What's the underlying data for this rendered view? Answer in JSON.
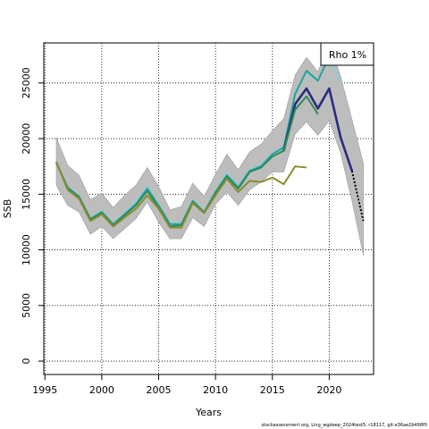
{
  "chart_data": {
    "type": "line",
    "title": "",
    "xlabel": "Years",
    "ylabel": "SSB",
    "xlim": [
      1994.9,
      2023.9
    ],
    "ylim": [
      -1200,
      28600
    ],
    "xticks": [
      1995,
      2000,
      2005,
      2010,
      2015,
      2020
    ],
    "yticks": [
      0,
      5000,
      10000,
      15000,
      20000,
      25000
    ],
    "grid": true,
    "legend": {
      "position": "top-right",
      "text": "Rho 1%"
    },
    "confidence_band": {
      "x": [
        1996,
        1997,
        1998,
        1999,
        2000,
        2001,
        2002,
        2003,
        2004,
        2005,
        2006,
        2007,
        2008,
        2009,
        2010,
        2011,
        2012,
        2013,
        2014,
        2015,
        2016,
        2017,
        2018,
        2019,
        2020,
        2021,
        2022,
        2023
      ],
      "upper": [
        20100,
        17600,
        16700,
        14500,
        15100,
        13800,
        14900,
        15800,
        17400,
        15700,
        13600,
        13900,
        16000,
        14800,
        16800,
        18600,
        17200,
        18800,
        19500,
        20700,
        21800,
        25700,
        27300,
        26000,
        28600,
        25600,
        21700,
        17800
      ],
      "lower": [
        15800,
        14000,
        13400,
        11400,
        12100,
        11000,
        11900,
        12800,
        14300,
        12500,
        11000,
        11000,
        12900,
        12100,
        14100,
        15200,
        14000,
        15400,
        16100,
        17000,
        17000,
        20400,
        21500,
        20300,
        21600,
        18700,
        14400,
        9500
      ]
    },
    "series": [
      {
        "color": "#2b2b7e",
        "x": [
          2016,
          2017,
          2018,
          2019,
          2020,
          2021,
          2022
        ],
        "values": [
          18900,
          23100,
          24500,
          22700,
          24500,
          20100,
          17100
        ]
      },
      {
        "color": "#000000",
        "x": [
          2022,
          2023
        ],
        "values": [
          17100,
          12600
        ]
      },
      {
        "color": "#87cedb",
        "x": [
          1996,
          1997,
          1998,
          1999,
          2000,
          2001,
          2002,
          2003,
          2004,
          2005,
          2006,
          2007,
          2008,
          2009,
          2010,
          2011,
          2012,
          2013,
          2014,
          2015,
          2016,
          2017,
          2018,
          2019,
          2020,
          2021
        ],
        "values": [
          17800,
          15700,
          14800,
          12800,
          13500,
          12300,
          13300,
          14300,
          15700,
          14000,
          12400,
          12400,
          14500,
          13400,
          15300,
          16900,
          15700,
          17200,
          17600,
          18700,
          19300,
          24200,
          25900,
          25200,
          27300,
          25100
        ]
      },
      {
        "color": "#2aa198",
        "x": [
          1996,
          1997,
          1998,
          1999,
          2000,
          2001,
          2002,
          2003,
          2004,
          2005,
          2006,
          2007,
          2008,
          2009,
          2010,
          2011,
          2012,
          2013,
          2014,
          2015,
          2016,
          2017,
          2018,
          2019,
          2020
        ],
        "values": [
          17800,
          15600,
          14800,
          12800,
          13400,
          12300,
          13200,
          14100,
          15500,
          14000,
          12300,
          12300,
          14400,
          13400,
          15200,
          16700,
          15600,
          17100,
          17500,
          18600,
          19200,
          24000,
          26100,
          25200,
          27400
        ]
      },
      {
        "color": "#2e8b57",
        "x": [
          1996,
          1997,
          1998,
          1999,
          2000,
          2001,
          2002,
          2003,
          2004,
          2005,
          2006,
          2007,
          2008,
          2009,
          2010,
          2011,
          2012,
          2013,
          2014,
          2015,
          2016,
          2017,
          2018,
          2019
        ],
        "values": [
          17900,
          15500,
          14700,
          12700,
          13300,
          12200,
          13100,
          14000,
          15300,
          13800,
          12100,
          12200,
          14300,
          13300,
          15100,
          16600,
          15500,
          17000,
          17400,
          18400,
          18900,
          22600,
          23800,
          22200
        ]
      },
      {
        "color": "#8b8b2e",
        "x": [
          1996,
          1997,
          1998,
          1999,
          2000,
          2001,
          2002,
          2003,
          2004,
          2005,
          2006,
          2007,
          2008,
          2009,
          2010,
          2011,
          2012,
          2013,
          2014,
          2015,
          2016,
          2017,
          2018
        ],
        "values": [
          17900,
          15400,
          14600,
          12600,
          13200,
          12100,
          12900,
          13700,
          14900,
          13700,
          12000,
          12000,
          14200,
          13300,
          14900,
          16400,
          15200,
          16200,
          16100,
          16500,
          15900,
          17500,
          17400
        ]
      }
    ]
  },
  "footer_text": "stockassessment.org, Ling_wgdeep_2024test5, r18117, git:e36ae2b498f0"
}
